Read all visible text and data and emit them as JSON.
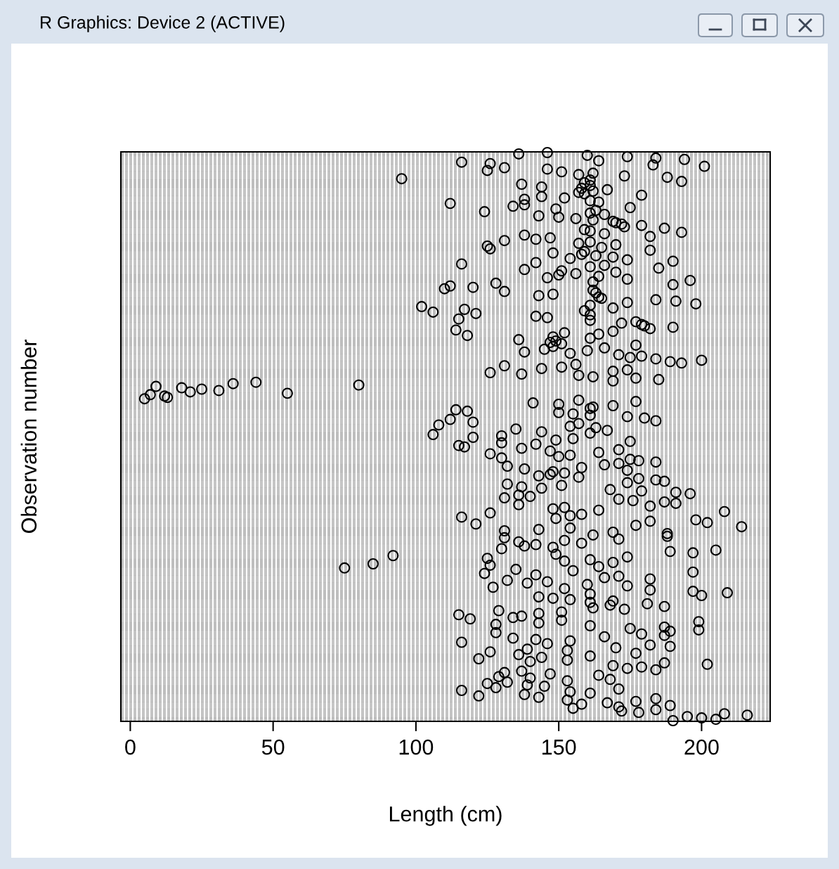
{
  "chart_data": {
    "type": "scatter",
    "orientation": "horizontal",
    "annotations": [
      "R Graphics: Device 2 (ACTIVE)"
    ],
    "xlabel": "Length (cm)",
    "ylabel": "Observation number",
    "categories": [
      null,
      null,
      null,
      null,
      null,
      null,
      null,
      null,
      null,
      null,
      null,
      null,
      null,
      null,
      null,
      null,
      null,
      null,
      null,
      null,
      null,
      null,
      null,
      null,
      null,
      null,
      null,
      null,
      null,
      null,
      null,
      null,
      null,
      null,
      null,
      null,
      null,
      null,
      null,
      null,
      null,
      null,
      null,
      null,
      null,
      null,
      null,
      null,
      null,
      null,
      null,
      null,
      null,
      null,
      null,
      null,
      null,
      null,
      null,
      null,
      null,
      null,
      null,
      null,
      null,
      null,
      null,
      null,
      null,
      null,
      null,
      null,
      null,
      null,
      null,
      null,
      null,
      null,
      null,
      null,
      null,
      null,
      null,
      null,
      null,
      null,
      null,
      null,
      null,
      null,
      null,
      null,
      null,
      null,
      null,
      null,
      null,
      null,
      null,
      null,
      null,
      null,
      null,
      null,
      null,
      null,
      null,
      null,
      null,
      null,
      null,
      null,
      null,
      null,
      null,
      null,
      null,
      null,
      null,
      null,
      null,
      null,
      null,
      null,
      null,
      null,
      null,
      null,
      null,
      null,
      null,
      null,
      null,
      null,
      null,
      null,
      null,
      null,
      null,
      null,
      null,
      null,
      null,
      null,
      null,
      null,
      null,
      null,
      null,
      null,
      null,
      null,
      null,
      null,
      null,
      null,
      null,
      null,
      null,
      null,
      null,
      null,
      null,
      null,
      null,
      null,
      null,
      null,
      null,
      null,
      null,
      null,
      null,
      null,
      null,
      null,
      null,
      null,
      null,
      null,
      null,
      null,
      null,
      null,
      null,
      null,
      null,
      null,
      null,
      null,
      null,
      null,
      null,
      null,
      null,
      null,
      null,
      null,
      null,
      null,
      null,
      null,
      null,
      null,
      null,
      null,
      null,
      null,
      null,
      null,
      null,
      null,
      null,
      null,
      null,
      null,
      null,
      null,
      null,
      null,
      null,
      null,
      null,
      null,
      null,
      null,
      null,
      null,
      null,
      null,
      null,
      null,
      null,
      null,
      null,
      null,
      null,
      null,
      null,
      null,
      null,
      null,
      null,
      null,
      null,
      null,
      null,
      null,
      null,
      null,
      null,
      null,
      null,
      null,
      null,
      null,
      null,
      null,
      null,
      null,
      null,
      null,
      null,
      null,
      null,
      null,
      null,
      null,
      null,
      null,
      null,
      null,
      null,
      null,
      null,
      null,
      null,
      null,
      null,
      null,
      null,
      null,
      null,
      null,
      null,
      null,
      null,
      null,
      null,
      null,
      null,
      null,
      null,
      null,
      null,
      null,
      null,
      null,
      null,
      null,
      null,
      null,
      null,
      null,
      null,
      null,
      null,
      null,
      null,
      null,
      null,
      null,
      null,
      null,
      null,
      null,
      null,
      null,
      null,
      null,
      null,
      null,
      null,
      null,
      null,
      null,
      null,
      null,
      null,
      null,
      null,
      null,
      null,
      null,
      null,
      null,
      null,
      null,
      null,
      null,
      null,
      null,
      null,
      null,
      null,
      null,
      null,
      null,
      null,
      null,
      null,
      null,
      null,
      null,
      null,
      null,
      null,
      null,
      null,
      null,
      null,
      null,
      null,
      null,
      null,
      null,
      null,
      null,
      null,
      null,
      null,
      null,
      null,
      null,
      null,
      null,
      null,
      null,
      null,
      null,
      null,
      null,
      null,
      null,
      null,
      null,
      null,
      null,
      null,
      null,
      null,
      null,
      null,
      null,
      null,
      null,
      null,
      null,
      null,
      null,
      null,
      null,
      null,
      null,
      null,
      null,
      null,
      null,
      null,
      null,
      null,
      null,
      null,
      null
    ],
    "series": [
      {
        "color": "#000000",
        "values": [
          146,
          136,
          160,
          174,
          184,
          194,
          164,
          116,
          126,
          183,
          201,
          131,
          146,
          125,
          151,
          162,
          157,
          173,
          188,
          95,
          161,
          193,
          159,
          137,
          161,
          144,
          158,
          167,
          162,
          157,
          159,
          179,
          144,
          152,
          138,
          161,
          164,
          112,
          138,
          134,
          175,
          149,
          163,
          124,
          161,
          166,
          143,
          150,
          156,
          162,
          169,
          170,
          172,
          179,
          173,
          187,
          159,
          161,
          193,
          166,
          138,
          182,
          147,
          142,
          131,
          161,
          157,
          170,
          125,
          165,
          126,
          182,
          159,
          148,
          158,
          163,
          169,
          154,
          174,
          190,
          142,
          116,
          166,
          161,
          185,
          138,
          151,
          170,
          156,
          150,
          164,
          146,
          174,
          196,
          162,
          128,
          190,
          112,
          120,
          110,
          162,
          131,
          163,
          148,
          143,
          164,
          165,
          184,
          191,
          174,
          198,
          161,
          102,
          169,
          117,
          159,
          106,
          121,
          161,
          142,
          146,
          115,
          161,
          177,
          172,
          179,
          180,
          190,
          182,
          114,
          169,
          152,
          164,
          118,
          148,
          161,
          136,
          149,
          147,
          151,
          177,
          148,
          166,
          145,
          160,
          138,
          154,
          171,
          179,
          175,
          184,
          200,
          189,
          193,
          156,
          131,
          151,
          144,
          174,
          169,
          126,
          137,
          157,
          162,
          177,
          185,
          169,
          44,
          36,
          80,
          9,
          18,
          25,
          31,
          21,
          55,
          7,
          12,
          13,
          5,
          157,
          177,
          141,
          150,
          169,
          162,
          161,
          114,
          118,
          150,
          155,
          161,
          174,
          180,
          112,
          184,
          120,
          157,
          108,
          154,
          163,
          135,
          167,
          144,
          161,
          106,
          130,
          120,
          155,
          149,
          175,
          130,
          142,
          115,
          117,
          137,
          171,
          147,
          164,
          126,
          154,
          150,
          130,
          175,
          178,
          184,
          171,
          166,
          132,
          158,
          138,
          174,
          148,
          152,
          147,
          143,
          157,
          178,
          184,
          187,
          174,
          132,
          151,
          137,
          144,
          168,
          179,
          191,
          196,
          136,
          140,
          131,
          171,
          176,
          187,
          191,
          136,
          182,
          152,
          148,
          164,
          208,
          126,
          158,
          154,
          116,
          149,
          198,
          182,
          202,
          121,
          177,
          214,
          154,
          143,
          131,
          169,
          188,
          162,
          188,
          131,
          171,
          152,
          136,
          158,
          142,
          138,
          148,
          130,
          205,
          189,
          197,
          149,
          92,
          174,
          125,
          161,
          152,
          169,
          85,
          126,
          164,
          75,
          135,
          155,
          197,
          124,
          142,
          171,
          166,
          182,
          132,
          146,
          139,
          160,
          174,
          127,
          152,
          182,
          197,
          209,
          161,
          200,
          143,
          148,
          154,
          169,
          161,
          181,
          168,
          187,
          162,
          173,
          129,
          151,
          143,
          115,
          137,
          134,
          119,
          151,
          199,
          143,
          128,
          161,
          187,
          175,
          199,
          189,
          128,
          179,
          187,
          166,
          134,
          142,
          154,
          116,
          146,
          182,
          189,
          170,
          139,
          153,
          126,
          177,
          136,
          161,
          144,
          122,
          153,
          140,
          187,
          202,
          169,
          179,
          174,
          184,
          137,
          131,
          147,
          164,
          129,
          140,
          168,
          153,
          132,
          125,
          139,
          145,
          128,
          171,
          116,
          154,
          161,
          138,
          122,
          143,
          184,
          153,
          177,
          167,
          158,
          189,
          171,
          155,
          184,
          172,
          178,
          208,
          216,
          195,
          200,
          205,
          190
        ]
      }
    ],
    "xlim": [
      -3.3,
      224
    ],
    "xticks": [
      0,
      50,
      100,
      150,
      200
    ],
    "tick_labels": "x",
    "grid": "y",
    "marker": "circle"
  }
}
